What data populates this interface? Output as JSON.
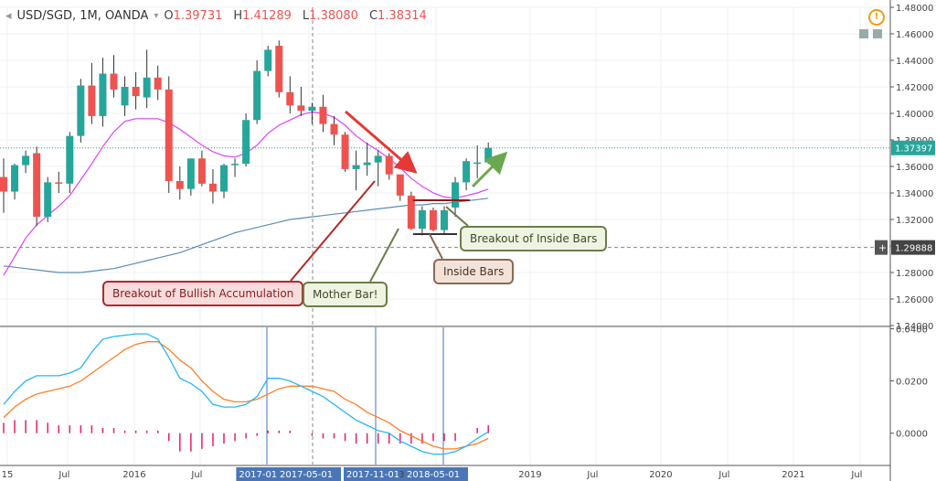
{
  "header": {
    "symbol": "USD/SGD, 1M, OANDA",
    "open_k": "O",
    "open_v": "1.39731",
    "high_k": "H",
    "high_v": "1.41289",
    "low_k": "L",
    "low_v": "1.38080",
    "close_k": "C",
    "close_v": "1.38314"
  },
  "price_axis": {
    "ticks": [
      "1.48000",
      "1.46000",
      "1.44000",
      "1.42000",
      "1.40000",
      "1.38000",
      "1.36000",
      "1.34000",
      "1.32000",
      "1.30000",
      "1.28000",
      "1.26000",
      "1.24000"
    ]
  },
  "price_badges": {
    "last": "1.37397",
    "cursor": "1.29888",
    "cursor_prefix": "+"
  },
  "osc_axis": {
    "ticks": [
      "0.0400",
      "0.0200",
      "0.0000"
    ]
  },
  "time_axis": {
    "labels": [
      "15",
      "Jul",
      "2016",
      "Jul",
      "2017-01-",
      "2017-05-01",
      "2017-11-01",
      "2018-05-01",
      "2019",
      "Jul",
      "2020",
      "Jul",
      "2021",
      "Jul"
    ],
    "partial": "3"
  },
  "annotations": {
    "breakout_accum": "Breakout of Bullish Accumulation",
    "mother_bar": "Mother Bar!",
    "inside_bars": "Inside Bars",
    "breakout_inside": "Breakout of Inside Bars"
  },
  "colors": {
    "up": "#26a69a",
    "down": "#ef5350",
    "ma_fast": "#e040fb",
    "ma_slow": "#5b8db8",
    "macd": "#29b6f6",
    "signal": "#ff7f27",
    "hist": "#e91e63"
  },
  "chart_data": [
    {
      "type": "candlestick",
      "title": "USD/SGD, 1M, OANDA",
      "ylim": [
        1.24,
        1.48
      ],
      "candles": [
        {
          "o": 1.352,
          "h": 1.366,
          "l": 1.325,
          "c": 1.341
        },
        {
          "o": 1.341,
          "h": 1.362,
          "l": 1.335,
          "c": 1.361
        },
        {
          "o": 1.361,
          "h": 1.372,
          "l": 1.355,
          "c": 1.368
        },
        {
          "o": 1.37,
          "h": 1.375,
          "l": 1.315,
          "c": 1.322
        },
        {
          "o": 1.322,
          "h": 1.352,
          "l": 1.318,
          "c": 1.348
        },
        {
          "o": 1.348,
          "h": 1.356,
          "l": 1.34,
          "c": 1.347
        },
        {
          "o": 1.347,
          "h": 1.386,
          "l": 1.34,
          "c": 1.383
        },
        {
          "o": 1.383,
          "h": 1.426,
          "l": 1.378,
          "c": 1.421
        },
        {
          "o": 1.421,
          "h": 1.438,
          "l": 1.392,
          "c": 1.398
        },
        {
          "o": 1.398,
          "h": 1.442,
          "l": 1.39,
          "c": 1.43
        },
        {
          "o": 1.43,
          "h": 1.444,
          "l": 1.412,
          "c": 1.418
        },
        {
          "o": 1.406,
          "h": 1.428,
          "l": 1.398,
          "c": 1.42
        },
        {
          "o": 1.42,
          "h": 1.431,
          "l": 1.403,
          "c": 1.413
        },
        {
          "o": 1.412,
          "h": 1.448,
          "l": 1.404,
          "c": 1.427
        },
        {
          "o": 1.427,
          "h": 1.436,
          "l": 1.41,
          "c": 1.418
        },
        {
          "o": 1.418,
          "h": 1.428,
          "l": 1.34,
          "c": 1.349
        },
        {
          "o": 1.349,
          "h": 1.36,
          "l": 1.335,
          "c": 1.343
        },
        {
          "o": 1.343,
          "h": 1.366,
          "l": 1.338,
          "c": 1.366
        },
        {
          "o": 1.366,
          "h": 1.372,
          "l": 1.345,
          "c": 1.347
        },
        {
          "o": 1.347,
          "h": 1.358,
          "l": 1.332,
          "c": 1.341
        },
        {
          "o": 1.341,
          "h": 1.362,
          "l": 1.336,
          "c": 1.361
        },
        {
          "o": 1.361,
          "h": 1.366,
          "l": 1.352,
          "c": 1.362
        },
        {
          "o": 1.362,
          "h": 1.4,
          "l": 1.36,
          "c": 1.395
        },
        {
          "o": 1.395,
          "h": 1.44,
          "l": 1.392,
          "c": 1.432
        },
        {
          "o": 1.432,
          "h": 1.451,
          "l": 1.428,
          "c": 1.448
        },
        {
          "o": 1.451,
          "h": 1.455,
          "l": 1.412,
          "c": 1.416
        },
        {
          "o": 1.416,
          "h": 1.428,
          "l": 1.4,
          "c": 1.406
        },
        {
          "o": 1.406,
          "h": 1.42,
          "l": 1.398,
          "c": 1.402
        },
        {
          "o": 1.402,
          "h": 1.408,
          "l": 1.392,
          "c": 1.405
        },
        {
          "o": 1.405,
          "h": 1.414,
          "l": 1.386,
          "c": 1.392
        },
        {
          "o": 1.392,
          "h": 1.398,
          "l": 1.376,
          "c": 1.384
        },
        {
          "o": 1.384,
          "h": 1.386,
          "l": 1.356,
          "c": 1.358
        },
        {
          "o": 1.358,
          "h": 1.372,
          "l": 1.342,
          "c": 1.361
        },
        {
          "o": 1.361,
          "h": 1.378,
          "l": 1.353,
          "c": 1.363
        },
        {
          "o": 1.363,
          "h": 1.372,
          "l": 1.345,
          "c": 1.368
        },
        {
          "o": 1.368,
          "h": 1.37,
          "l": 1.35,
          "c": 1.354
        },
        {
          "o": 1.354,
          "h": 1.352,
          "l": 1.334,
          "c": 1.338
        },
        {
          "o": 1.338,
          "h": 1.341,
          "l": 1.312,
          "c": 1.313
        },
        {
          "o": 1.313,
          "h": 1.33,
          "l": 1.308,
          "c": 1.327
        },
        {
          "o": 1.327,
          "h": 1.329,
          "l": 1.311,
          "c": 1.312
        },
        {
          "o": 1.312,
          "h": 1.33,
          "l": 1.309,
          "c": 1.327
        },
        {
          "o": 1.329,
          "h": 1.352,
          "l": 1.322,
          "c": 1.348
        },
        {
          "o": 1.348,
          "h": 1.366,
          "l": 1.342,
          "c": 1.364
        },
        {
          "o": 1.362,
          "h": 1.376,
          "l": 1.351,
          "c": 1.363
        },
        {
          "o": 1.363,
          "h": 1.378,
          "l": 1.362,
          "c": 1.374
        }
      ],
      "ma_fast": [
        1.278,
        1.292,
        1.306,
        1.316,
        1.323,
        1.33,
        1.338,
        1.35,
        1.362,
        1.375,
        1.386,
        1.394,
        1.396,
        1.396,
        1.396,
        1.393,
        1.388,
        1.382,
        1.376,
        1.371,
        1.368,
        1.367,
        1.37,
        1.376,
        1.385,
        1.391,
        1.395,
        1.399,
        1.401,
        1.4,
        1.397,
        1.391,
        1.383,
        1.377,
        1.372,
        1.366,
        1.359,
        1.351,
        1.345,
        1.34,
        1.337,
        1.336,
        1.338,
        1.34,
        1.343
      ],
      "ma_slow": [
        1.285,
        1.284,
        1.283,
        1.282,
        1.281,
        1.28,
        1.28,
        1.28,
        1.281,
        1.282,
        1.283,
        1.285,
        1.287,
        1.289,
        1.291,
        1.293,
        1.295,
        1.298,
        1.301,
        1.304,
        1.307,
        1.31,
        1.312,
        1.314,
        1.316,
        1.318,
        1.32,
        1.321,
        1.322,
        1.323,
        1.324,
        1.325,
        1.326,
        1.327,
        1.328,
        1.329,
        1.33,
        1.331,
        1.331,
        1.332,
        1.332,
        1.333,
        1.334,
        1.335,
        1.336
      ],
      "horizontal_levels": [
        1.37397,
        1.29888
      ]
    },
    {
      "type": "line",
      "ylim": [
        -0.012,
        0.0405
      ],
      "series": [
        {
          "values": [
            0.011,
            0.016,
            0.02,
            0.022,
            0.022,
            0.022,
            0.023,
            0.025,
            0.031,
            0.036,
            0.037,
            0.0375,
            0.038,
            0.038,
            0.036,
            0.029,
            0.021,
            0.019,
            0.016,
            0.011,
            0.01,
            0.01,
            0.011,
            0.014,
            0.021,
            0.021,
            0.02,
            0.018,
            0.016,
            0.014,
            0.011,
            0.008,
            0.005,
            0.003,
            0.001,
            0.0,
            -0.003,
            -0.005,
            -0.007,
            -0.008,
            -0.008,
            -0.007,
            -0.005,
            -0.002,
            0.0005
          ]
        },
        {
          "values": [
            0.006,
            0.01,
            0.013,
            0.015,
            0.016,
            0.017,
            0.018,
            0.02,
            0.023,
            0.026,
            0.029,
            0.032,
            0.034,
            0.035,
            0.035,
            0.032,
            0.028,
            0.025,
            0.02,
            0.016,
            0.013,
            0.012,
            0.012,
            0.013,
            0.015,
            0.017,
            0.018,
            0.018,
            0.018,
            0.017,
            0.016,
            0.013,
            0.011,
            0.008,
            0.006,
            0.004,
            0.001,
            -0.001,
            -0.003,
            -0.005,
            -0.006,
            -0.006,
            -0.005,
            -0.004,
            -0.002
          ]
        }
      ],
      "histogram": [
        0.004,
        0.005,
        0.005,
        0.005,
        0.004,
        0.003,
        0.003,
        0.003,
        0.003,
        0.002,
        0.002,
        0.001,
        0.001,
        0.001,
        0.001,
        -0.003,
        -0.007,
        -0.007,
        -0.006,
        -0.005,
        -0.004,
        -0.003,
        -0.002,
        -0.001,
        0.001,
        0.001,
        0.001,
        0.0,
        -0.001,
        -0.002,
        -0.002,
        -0.003,
        -0.004,
        -0.004,
        -0.004,
        -0.004,
        -0.004,
        -0.004,
        -0.004,
        -0.003,
        -0.003,
        -0.003,
        0.0,
        0.002,
        0.003
      ]
    }
  ]
}
